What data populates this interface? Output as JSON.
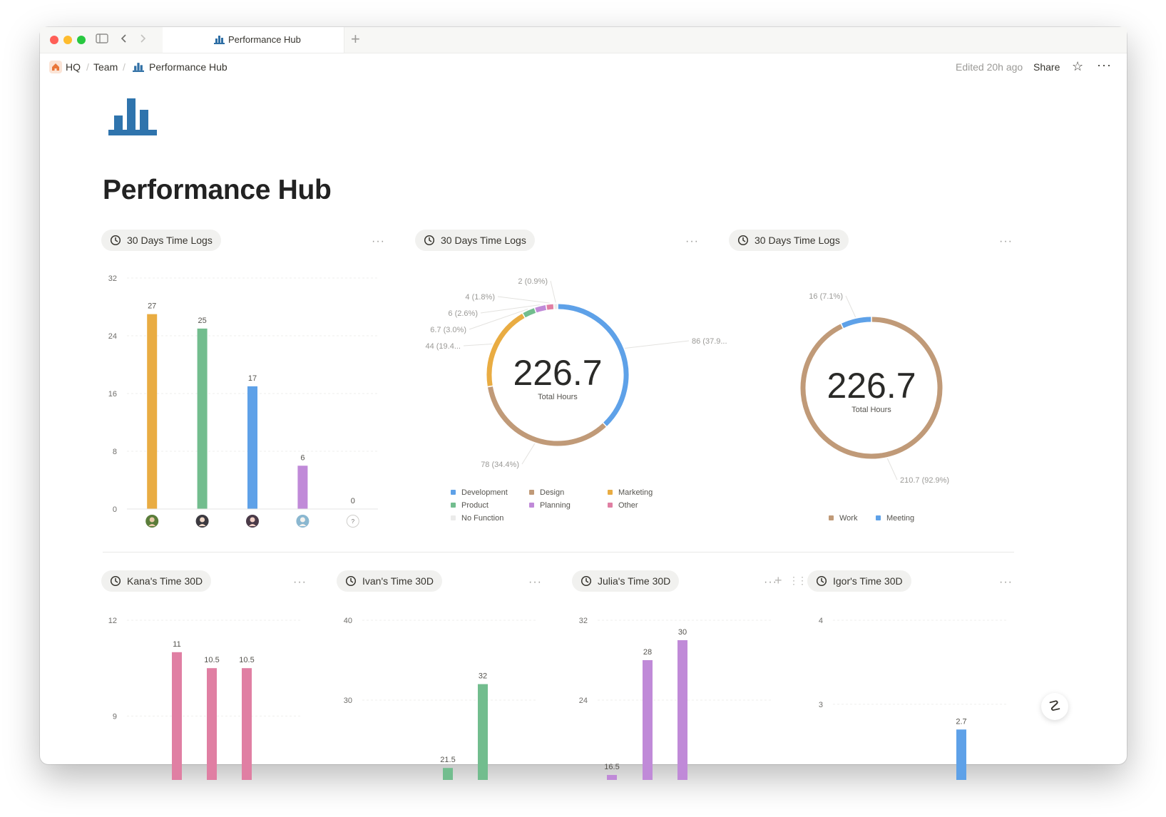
{
  "window": {
    "tab_title": "Performance Hub",
    "traffic": [
      "#ff5f57",
      "#febc2e",
      "#28c840"
    ]
  },
  "breadcrumb": {
    "items": [
      "HQ",
      "Team",
      "Performance Hub"
    ],
    "edited": "Edited 20h ago",
    "share": "Share"
  },
  "page": {
    "title": "Performance Hub"
  },
  "colors": {
    "development": "#5ea1e8",
    "design": "#c09a78",
    "marketing": "#e9ac42",
    "product": "#72bd8e",
    "planning": "#c08ad8",
    "other": "#e07fa3",
    "no_function": "#ebebea"
  },
  "widgets": [
    {
      "title": "30 Days Time Logs",
      "chart_data": {
        "type": "bar",
        "categories": [
          "user-1",
          "user-2",
          "user-3",
          "user-4",
          "?"
        ],
        "values": [
          27,
          25,
          17,
          6,
          0
        ],
        "value_labels": [
          "27",
          "25",
          "17",
          "6",
          "0"
        ],
        "colors": [
          "#e9ac42",
          "#72bd8e",
          "#5ea1e8",
          "#c08ad8",
          "#d3d3d1"
        ],
        "yticks": [
          "0",
          "8",
          "16",
          "24",
          "32"
        ],
        "ylim": [
          0,
          32
        ],
        "unknown_label": "?"
      }
    },
    {
      "title": "30 Days Time Logs",
      "chart_data": {
        "type": "pie",
        "center_value": "226.7",
        "center_label": "Total Hours",
        "slices": [
          {
            "name": "Development",
            "value": 86,
            "label": "86 (37.9...",
            "color": "#5ea1e8"
          },
          {
            "name": "Design",
            "value": 78,
            "label": "78 (34.4%)",
            "color": "#c09a78"
          },
          {
            "name": "Marketing",
            "value": 44,
            "label": "44 (19.4...",
            "color": "#e9ac42"
          },
          {
            "name": "Product",
            "value": 6.7,
            "label": "6.7 (3.0%)",
            "color": "#72bd8e"
          },
          {
            "name": "Planning",
            "value": 6,
            "label": "6 (2.6%)",
            "color": "#c08ad8"
          },
          {
            "name": "Other",
            "value": 4,
            "label": "4 (1.8%)",
            "color": "#e07fa3"
          },
          {
            "name": "No Function",
            "value": 2,
            "label": "2 (0.9%)",
            "color": "#ebebea"
          }
        ],
        "legend": [
          "Development",
          "Design",
          "Marketing",
          "Product",
          "Planning",
          "Other",
          "No Function"
        ]
      }
    },
    {
      "title": "30 Days Time Logs",
      "chart_data": {
        "type": "pie",
        "center_value": "226.7",
        "center_label": "Total Hours",
        "slices": [
          {
            "name": "Work",
            "value": 210.7,
            "label": "210.7 (92.9%)",
            "color": "#c09a78"
          },
          {
            "name": "Meeting",
            "value": 16,
            "label": "16 (7.1%)",
            "color": "#5ea1e8"
          }
        ],
        "legend": [
          "Work",
          "Meeting"
        ]
      }
    }
  ],
  "small_widgets": [
    {
      "title": "Kana's Time 30D",
      "chart_data": {
        "type": "bar",
        "yticks": [
          "9",
          "12"
        ],
        "ylim": [
          7,
          12
        ],
        "bars": [
          {
            "value": 11,
            "label": "11"
          },
          {
            "value": 10.5,
            "label": "10.5"
          },
          {
            "value": 10.5,
            "label": "10.5"
          }
        ],
        "color": "#e07fa3"
      }
    },
    {
      "title": "Ivan's Time 30D",
      "chart_data": {
        "type": "bar",
        "yticks": [
          "30",
          "40"
        ],
        "ylim": [
          20,
          40
        ],
        "bars": [
          {
            "value": 21.5,
            "label": "21.5"
          },
          {
            "value": 32,
            "label": "32"
          }
        ],
        "color": "#72bd8e"
      }
    },
    {
      "title": "Julia's Time 30D",
      "chart_data": {
        "type": "bar",
        "yticks": [
          "24",
          "32"
        ],
        "ylim": [
          16,
          32
        ],
        "bars": [
          {
            "value": 16.5,
            "label": "16.5"
          },
          {
            "value": 28,
            "label": "28"
          },
          {
            "value": 30,
            "label": "30"
          }
        ],
        "color": "#c08ad8"
      }
    },
    {
      "title": "Igor's Time 30D",
      "chart_data": {
        "type": "bar",
        "yticks": [
          "3",
          "4"
        ],
        "ylim": [
          2.1,
          4
        ],
        "bars": [
          {
            "value": 2.7,
            "label": "2.7"
          }
        ],
        "color": "#5ea1e8"
      }
    }
  ]
}
